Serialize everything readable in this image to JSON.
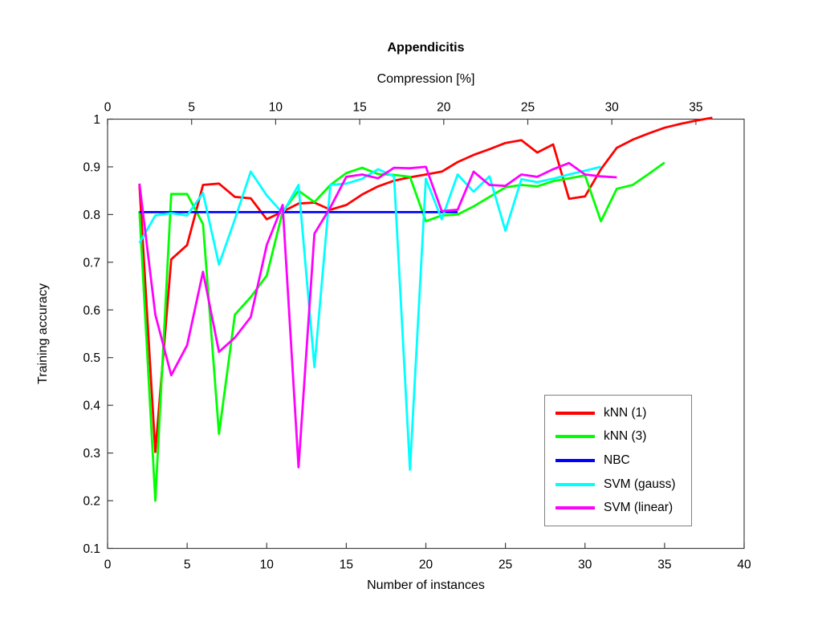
{
  "figure": {
    "title": "Appendicitis",
    "top_axis_label": "Compression [%]",
    "x_axis_label": "Number of instances",
    "y_axis_label": "Training accuracy",
    "background": "#FFFFFF",
    "axis_color": "#404040"
  },
  "legend": {
    "items": [
      {
        "label": "kNN (1)",
        "color": "#FF0000"
      },
      {
        "label": "kNN (3)",
        "color": "#00FF00"
      },
      {
        "label": "NBC",
        "color": "#0000FF"
      },
      {
        "label": "SVM (gauss)",
        "color": "#00FFFF"
      },
      {
        "label": "SVM (linear)",
        "color": "#FF00FF"
      }
    ]
  },
  "chart_data": {
    "type": "line",
    "title": "Appendicitis",
    "xlabel": "Number of instances",
    "ylabel": "Training accuracy",
    "top_xlabel": "Compression [%]",
    "xlim": [
      0,
      40
    ],
    "ylim": [
      0.1,
      1.0
    ],
    "top_xlim": [
      0,
      37.87
    ],
    "grid": false,
    "legend_position": "lower right",
    "x_ticks": [
      0,
      5,
      10,
      15,
      20,
      25,
      30,
      35,
      40
    ],
    "x_tick_labels": [
      "0",
      "5",
      "10",
      "15",
      "20",
      "25",
      "30",
      "35",
      "40"
    ],
    "top_x_ticks": [
      0,
      5,
      10,
      15,
      20,
      25,
      30,
      35
    ],
    "top_x_tick_labels": [
      "0",
      "5",
      "10",
      "15",
      "20",
      "25",
      "30",
      "35"
    ],
    "y_ticks": [
      0.1,
      0.2,
      0.3,
      0.4,
      0.5,
      0.6,
      0.7,
      0.8,
      0.9,
      1.0
    ],
    "y_tick_labels": [
      "0.1",
      "0.2",
      "0.3",
      "0.4",
      "0.5",
      "0.6",
      "0.7",
      "0.8",
      "0.9",
      "1"
    ],
    "series": [
      {
        "name": "kNN (1)",
        "color": "#FF0000",
        "x_start": 2,
        "x_step": 1,
        "values": [
          0.862,
          0.302,
          0.706,
          0.736,
          0.862,
          0.865,
          0.837,
          0.834,
          0.79,
          0.806,
          0.823,
          0.825,
          0.81,
          0.82,
          0.842,
          0.859,
          0.871,
          0.878,
          0.884,
          0.89,
          0.91,
          0.925,
          0.937,
          0.95,
          0.956,
          0.93,
          0.947,
          0.833,
          0.838,
          0.895,
          0.94,
          0.957,
          0.97,
          0.982,
          0.99,
          0.997,
          1.003
        ]
      },
      {
        "name": "kNN (3)",
        "color": "#00FF00",
        "x_start": 2,
        "x_step": 1,
        "values": [
          0.807,
          0.2,
          0.843,
          0.843,
          0.78,
          0.34,
          0.59,
          0.627,
          0.672,
          0.806,
          0.85,
          0.826,
          0.862,
          0.887,
          0.898,
          0.885,
          0.883,
          0.879,
          0.786,
          0.798,
          0.8,
          0.817,
          0.837,
          0.857,
          0.862,
          0.859,
          0.87,
          0.876,
          0.882,
          0.786,
          0.854,
          0.862,
          0.885,
          0.909
        ]
      },
      {
        "name": "NBC",
        "color": "#0000FF",
        "x_start": 2,
        "x_step": 1,
        "values": [
          0.805,
          0.805,
          0.805,
          0.805,
          0.805,
          0.805,
          0.805,
          0.805,
          0.805,
          0.805,
          0.805,
          0.805,
          0.805,
          0.805,
          0.805,
          0.805,
          0.805,
          0.805,
          0.805,
          0.805,
          0.805
        ]
      },
      {
        "name": "SVM (gauss)",
        "color": "#00FFFF",
        "x_start": 2,
        "x_step": 1,
        "values": [
          0.74,
          0.798,
          0.803,
          0.798,
          0.845,
          0.695,
          0.79,
          0.89,
          0.84,
          0.803,
          0.862,
          0.48,
          0.862,
          0.865,
          0.875,
          0.895,
          0.88,
          0.265,
          0.875,
          0.79,
          0.884,
          0.848,
          0.88,
          0.766,
          0.874,
          0.868,
          0.875,
          0.884,
          0.892,
          0.9
        ]
      },
      {
        "name": "SVM (linear)",
        "color": "#FF00FF",
        "x_start": 2,
        "x_step": 1,
        "values": [
          0.865,
          0.59,
          0.463,
          0.526,
          0.68,
          0.512,
          0.542,
          0.585,
          0.736,
          0.82,
          0.27,
          0.76,
          0.815,
          0.879,
          0.884,
          0.876,
          0.898,
          0.897,
          0.9,
          0.807,
          0.81,
          0.89,
          0.862,
          0.86,
          0.884,
          0.879,
          0.895,
          0.908,
          0.884,
          0.88,
          0.878
        ]
      }
    ]
  }
}
